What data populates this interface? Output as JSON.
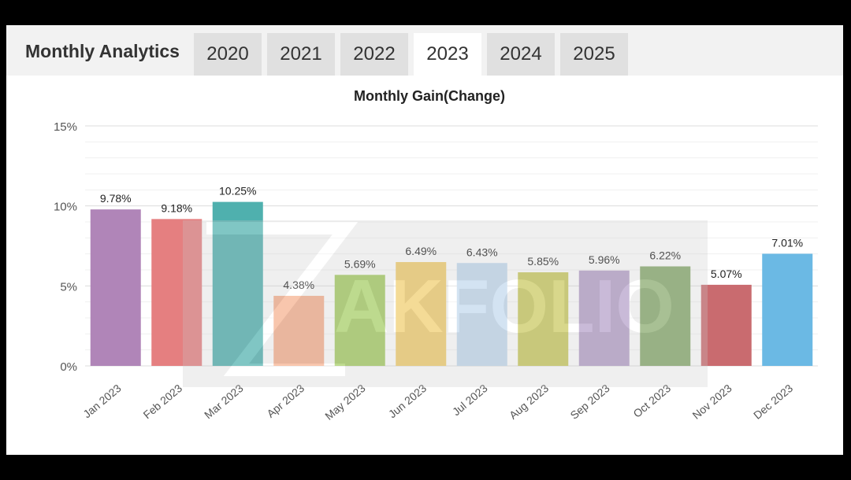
{
  "header": {
    "title": "Monthly Analytics",
    "tabs": [
      {
        "label": "2020",
        "active": false
      },
      {
        "label": "2021",
        "active": false
      },
      {
        "label": "2022",
        "active": false
      },
      {
        "label": "2023",
        "active": true
      },
      {
        "label": "2024",
        "active": false
      },
      {
        "label": "2025",
        "active": false
      }
    ]
  },
  "watermark": "ZAKFOLIO",
  "chart_data": {
    "type": "bar",
    "title": "Monthly Gain(Change)",
    "categories": [
      "Jan 2023",
      "Feb 2023",
      "Mar 2023",
      "Apr 2023",
      "May 2023",
      "Jun 2023",
      "Jul 2023",
      "Aug 2023",
      "Sep 2023",
      "Oct 2023",
      "Nov 2023",
      "Dec 2023"
    ],
    "values": [
      9.78,
      9.18,
      10.25,
      4.38,
      5.69,
      6.49,
      6.43,
      5.85,
      5.96,
      6.22,
      5.07,
      7.01
    ],
    "data_labels": [
      "9.78%",
      "9.18%",
      "10.25%",
      "4.38%",
      "5.69%",
      "6.49%",
      "6.43%",
      "5.85%",
      "5.96%",
      "6.22%",
      "5.07%",
      "7.01%"
    ],
    "colors": [
      "#b085b8",
      "#e57f80",
      "#4fb0ae",
      "#f6b08e",
      "#a4cc62",
      "#f1cd6d",
      "#c3d9ee",
      "#c9c85e",
      "#b5a0c9",
      "#86a86b",
      "#c96b6f",
      "#6bb9e4"
    ],
    "y_ticks": [
      "0%",
      "5%",
      "10%",
      "15%"
    ],
    "ylim": [
      0,
      15
    ],
    "grid": true,
    "legend": "none"
  }
}
